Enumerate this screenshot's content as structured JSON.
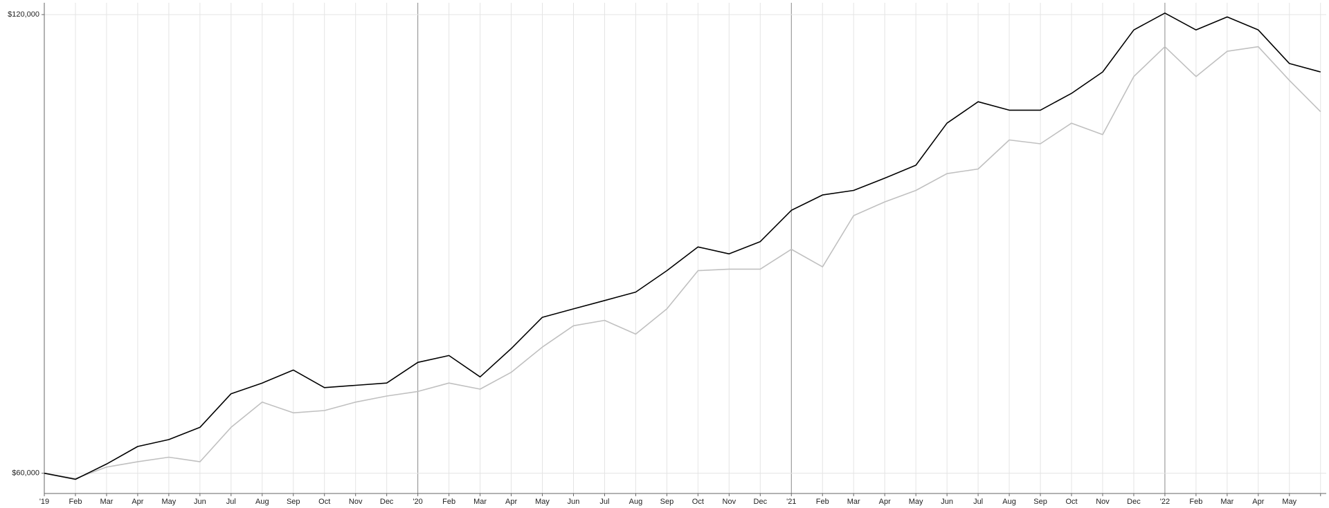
{
  "chart_data": {
    "type": "line",
    "categories": [
      "'19",
      "Feb",
      "Mar",
      "Apr",
      "May",
      "Jun",
      "Jul",
      "Aug",
      "Sep",
      "Oct",
      "Nov",
      "Dec",
      "'20",
      "Feb",
      "Mar",
      "Apr",
      "May",
      "Jun",
      "Jul",
      "Aug",
      "Sep",
      "Oct",
      "Nov",
      "Dec",
      "'21",
      "Feb",
      "Mar",
      "Apr",
      "May",
      "Jun",
      "Jul",
      "Aug",
      "Sep",
      "Oct",
      "Nov",
      "Dec",
      "'22",
      "Feb",
      "Mar",
      "Apr",
      "May",
      null
    ],
    "series": [
      {
        "color": "#000000",
        "values": [
          60000,
          59200,
          61200,
          63500,
          64400,
          66000,
          70400,
          71800,
          73500,
          71200,
          71500,
          71800,
          74500,
          75400,
          72600,
          76300,
          80400,
          81500,
          82600,
          83700,
          86500,
          89600,
          88700,
          90300,
          94400,
          96400,
          97000,
          98600,
          100300,
          105800,
          108600,
          107500,
          107500,
          109700,
          112500,
          118000,
          120200,
          118000,
          119700,
          118000,
          113600,
          112500
        ]
      },
      {
        "color": "#c0c0c0",
        "values": [
          60000,
          59300,
          60800,
          61500,
          62100,
          61500,
          66000,
          69300,
          67900,
          68200,
          69300,
          70100,
          70700,
          71800,
          71000,
          73200,
          76500,
          79300,
          80000,
          78200,
          81500,
          86500,
          86700,
          86700,
          89300,
          87000,
          93700,
          95500,
          97000,
          99200,
          99800,
          103600,
          103100,
          105800,
          104300,
          111900,
          115800,
          111900,
          115200,
          115800,
          111400,
          107300
        ]
      }
    ],
    "ylim": [
      57350,
      121550
    ],
    "yticks": [
      {
        "value": 120000,
        "label": "$120,000"
      },
      {
        "value": 60000,
        "label": "$60,000"
      }
    ],
    "grid": true
  }
}
